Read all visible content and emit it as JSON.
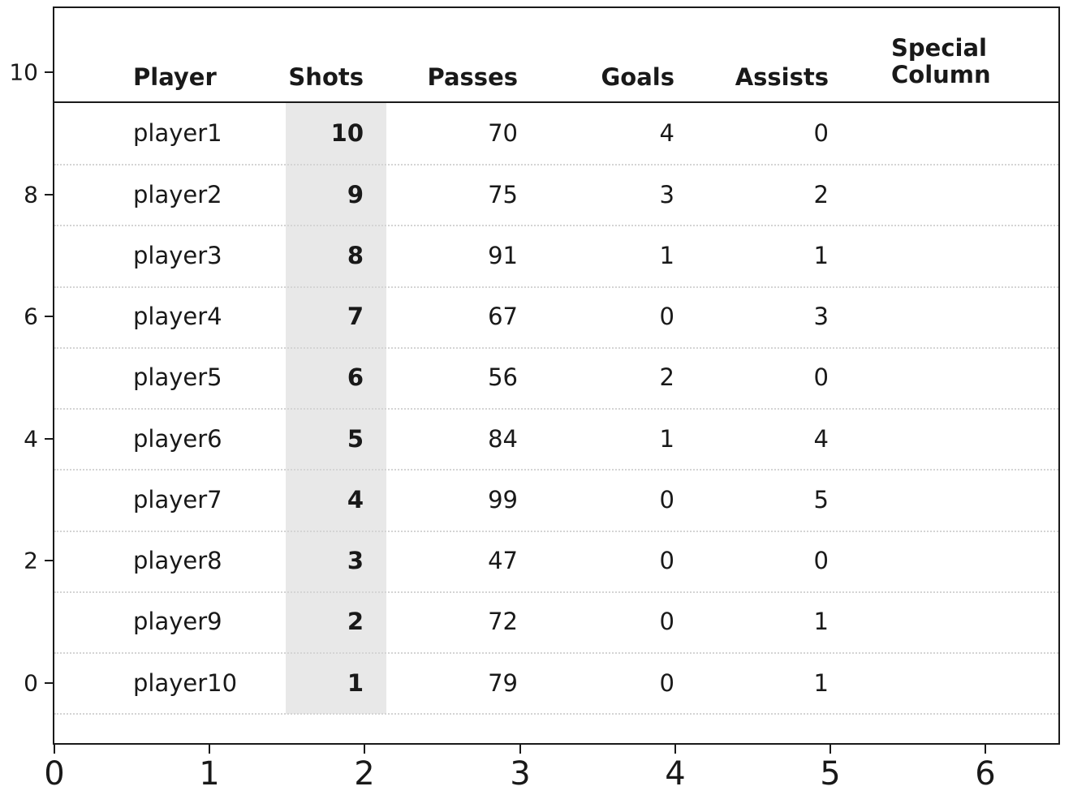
{
  "figure": {
    "kind": "matplotlib-style table plot",
    "title": ""
  },
  "style": {
    "background_color": "#ffffff",
    "text_color": "#191919",
    "spine_color": "#1a1a1a",
    "row_separator_color": "#d4d4d4",
    "highlight_color": "#e8e8e8"
  },
  "chart_data": {
    "type": "table",
    "title": "",
    "columns": [
      "Player",
      "Shots",
      "Passes",
      "Goals",
      "Assists",
      "Special Column"
    ],
    "highlighted_column": "Shots",
    "rows": [
      {
        "player": "player1",
        "shots": 10,
        "passes": 70,
        "goals": 4,
        "assists": 0,
        "special_column": ""
      },
      {
        "player": "player2",
        "shots": 9,
        "passes": 75,
        "goals": 3,
        "assists": 2,
        "special_column": ""
      },
      {
        "player": "player3",
        "shots": 8,
        "passes": 91,
        "goals": 1,
        "assists": 1,
        "special_column": ""
      },
      {
        "player": "player4",
        "shots": 7,
        "passes": 67,
        "goals": 0,
        "assists": 3,
        "special_column": ""
      },
      {
        "player": "player5",
        "shots": 6,
        "passes": 56,
        "goals": 2,
        "assists": 0,
        "special_column": ""
      },
      {
        "player": "player6",
        "shots": 5,
        "passes": 84,
        "goals": 1,
        "assists": 4,
        "special_column": ""
      },
      {
        "player": "player7",
        "shots": 4,
        "passes": 99,
        "goals": 0,
        "assists": 5,
        "special_column": ""
      },
      {
        "player": "player8",
        "shots": 3,
        "passes": 47,
        "goals": 0,
        "assists": 0,
        "special_column": ""
      },
      {
        "player": "player9",
        "shots": 2,
        "passes": 72,
        "goals": 0,
        "assists": 1,
        "special_column": ""
      },
      {
        "player": "player10",
        "shots": 1,
        "passes": 79,
        "goals": 0,
        "assists": 1,
        "special_column": ""
      }
    ],
    "x_axis": {
      "tick_labels": [
        "0",
        "1",
        "2",
        "3",
        "4",
        "5",
        "6"
      ],
      "range": [
        0,
        6.47
      ]
    },
    "y_axis": {
      "tick_labels": [
        "10",
        "8",
        "6",
        "4",
        "2",
        "0"
      ],
      "range": [
        -1.02,
        11.05
      ]
    },
    "grid": "dotted horizontal separators between rows",
    "legend_position": "none"
  }
}
